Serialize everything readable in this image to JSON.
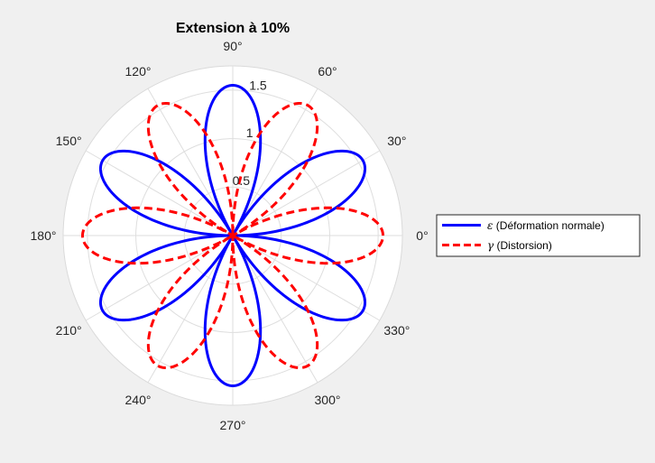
{
  "chart_data": {
    "type": "line",
    "subtype": "polar",
    "title": "Extension à 10%",
    "theta_ticks": [
      "0°",
      "30°",
      "60°",
      "90°",
      "120°",
      "150°",
      "180°",
      "210°",
      "240°",
      "270°",
      "300°",
      "330°"
    ],
    "r_ticks": [
      "0.5",
      "1",
      "1.5"
    ],
    "rlim": [
      0,
      1.75
    ],
    "grid": true,
    "legend_position": "right",
    "series": [
      {
        "name": "ε (Déformation normale)",
        "color": "#0000ff",
        "line_style": "solid",
        "function": "r = |1.55·sin(3θ)|",
        "peak_r": 1.55,
        "peak_theta_deg": [
          30,
          90,
          150,
          210,
          270,
          330
        ],
        "zero_theta_deg": [
          0,
          60,
          120,
          180,
          240,
          300
        ]
      },
      {
        "name": "γ (Distorsion)",
        "color": "#ff0000",
        "line_style": "dashed",
        "function": "r = |1.55·cos(3θ)|",
        "peak_r": 1.55,
        "peak_theta_deg": [
          0,
          60,
          120,
          180,
          240,
          300
        ],
        "zero_theta_deg": [
          30,
          90,
          150,
          210,
          270,
          330
        ]
      }
    ]
  },
  "legend": {
    "items": [
      {
        "symbol": "ε",
        "text": " (Déformation normale)"
      },
      {
        "symbol": "γ",
        "text": " (Distorsion)"
      }
    ]
  }
}
